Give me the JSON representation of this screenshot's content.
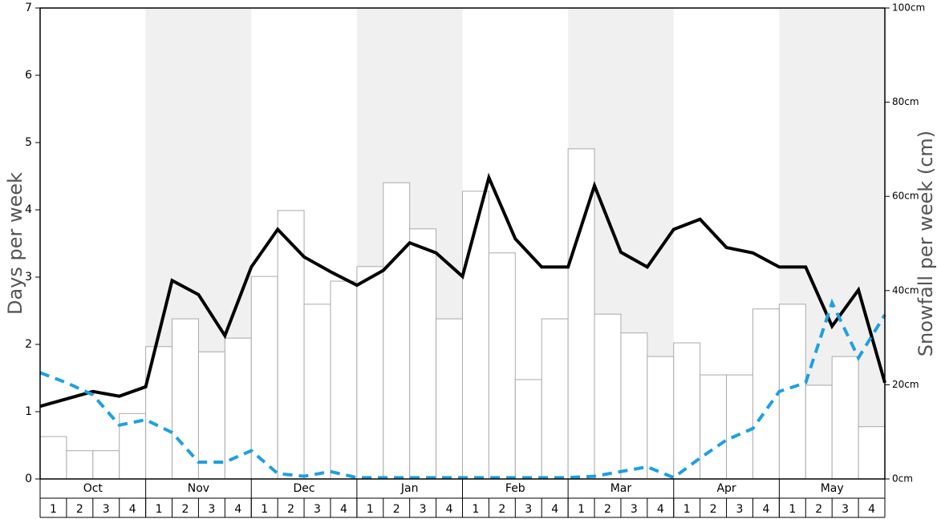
{
  "chart_data": {
    "type": "bar-line",
    "y_label": "Days per week",
    "y2_label": "Snowfall per week (cm)",
    "months": [
      "Oct",
      "Nov",
      "Dec",
      "Jan",
      "Feb",
      "Mar",
      "Apr",
      "May"
    ],
    "shaded_months": [
      false,
      true,
      false,
      true,
      false,
      true,
      false,
      true
    ],
    "categories": [
      "1",
      "2",
      "3",
      "4",
      "1",
      "2",
      "3",
      "4",
      "1",
      "2",
      "3",
      "4",
      "1",
      "2",
      "3",
      "4",
      "1",
      "2",
      "3",
      "4",
      "1",
      "2",
      "3",
      "4",
      "1",
      "2",
      "3",
      "4",
      "1",
      "2",
      "3",
      "4"
    ],
    "x": [
      0,
      1,
      2,
      3,
      4,
      5,
      6,
      7,
      8,
      9,
      10,
      11,
      12,
      13,
      14,
      15,
      16,
      17,
      18,
      19,
      20,
      21,
      22,
      23,
      24,
      25,
      26,
      27,
      28,
      29,
      30,
      31,
      32
    ],
    "xlim": [
      0,
      32
    ],
    "ylim": [
      0,
      7
    ],
    "yticks": [
      0,
      1,
      2,
      3,
      4,
      5,
      6,
      7
    ],
    "y2lim": [
      0,
      100
    ],
    "y2ticks": [
      {
        "value": 0,
        "label": "0cm"
      },
      {
        "value": 20,
        "label": "20cm"
      },
      {
        "value": 40,
        "label": "40cm"
      },
      {
        "value": 60,
        "label": "60cm"
      },
      {
        "value": 80,
        "label": "80cm"
      },
      {
        "value": 100,
        "label": "100cm"
      }
    ],
    "series": [
      {
        "kind": "bar",
        "axis": "y2",
        "color": "#ffffff",
        "stroke": "#aaaaaa",
        "values": [
          9.0,
          6.0,
          6.0,
          13.9,
          28.1,
          34.0,
          27.0,
          29.9,
          43.0,
          57.0,
          37.1,
          42.0,
          45.1,
          62.9,
          53.1,
          34.0,
          61.1,
          48.0,
          21.1,
          34.0,
          70.1,
          35.0,
          31.0,
          26.0,
          28.9,
          22.1,
          22.1,
          36.1,
          37.1,
          19.9,
          26.0,
          11.1
        ]
      },
      {
        "kind": "line",
        "color": "#000000",
        "dashed": false,
        "values": [
          1.08,
          1.19,
          1.3,
          1.23,
          1.37,
          2.95,
          2.74,
          2.13,
          3.15,
          3.71,
          3.3,
          3.08,
          2.88,
          3.1,
          3.51,
          3.36,
          3.01,
          4.48,
          3.57,
          3.15,
          3.15,
          4.36,
          3.37,
          3.15,
          3.71,
          3.86,
          3.44,
          3.36,
          3.15,
          3.15,
          2.27,
          2.81,
          1.43
        ]
      },
      {
        "kind": "line",
        "color": "#1ea0e0",
        "dashed": true,
        "values": [
          1.58,
          1.43,
          1.25,
          0.8,
          0.88,
          0.69,
          0.25,
          0.25,
          0.42,
          0.08,
          0.04,
          0.11,
          0.02,
          0.02,
          0.02,
          0.02,
          0.02,
          0.02,
          0.02,
          0.02,
          0.02,
          0.04,
          0.11,
          0.18,
          0.02,
          0.31,
          0.58,
          0.75,
          1.3,
          1.43,
          2.62,
          1.8,
          2.44
        ]
      }
    ]
  }
}
